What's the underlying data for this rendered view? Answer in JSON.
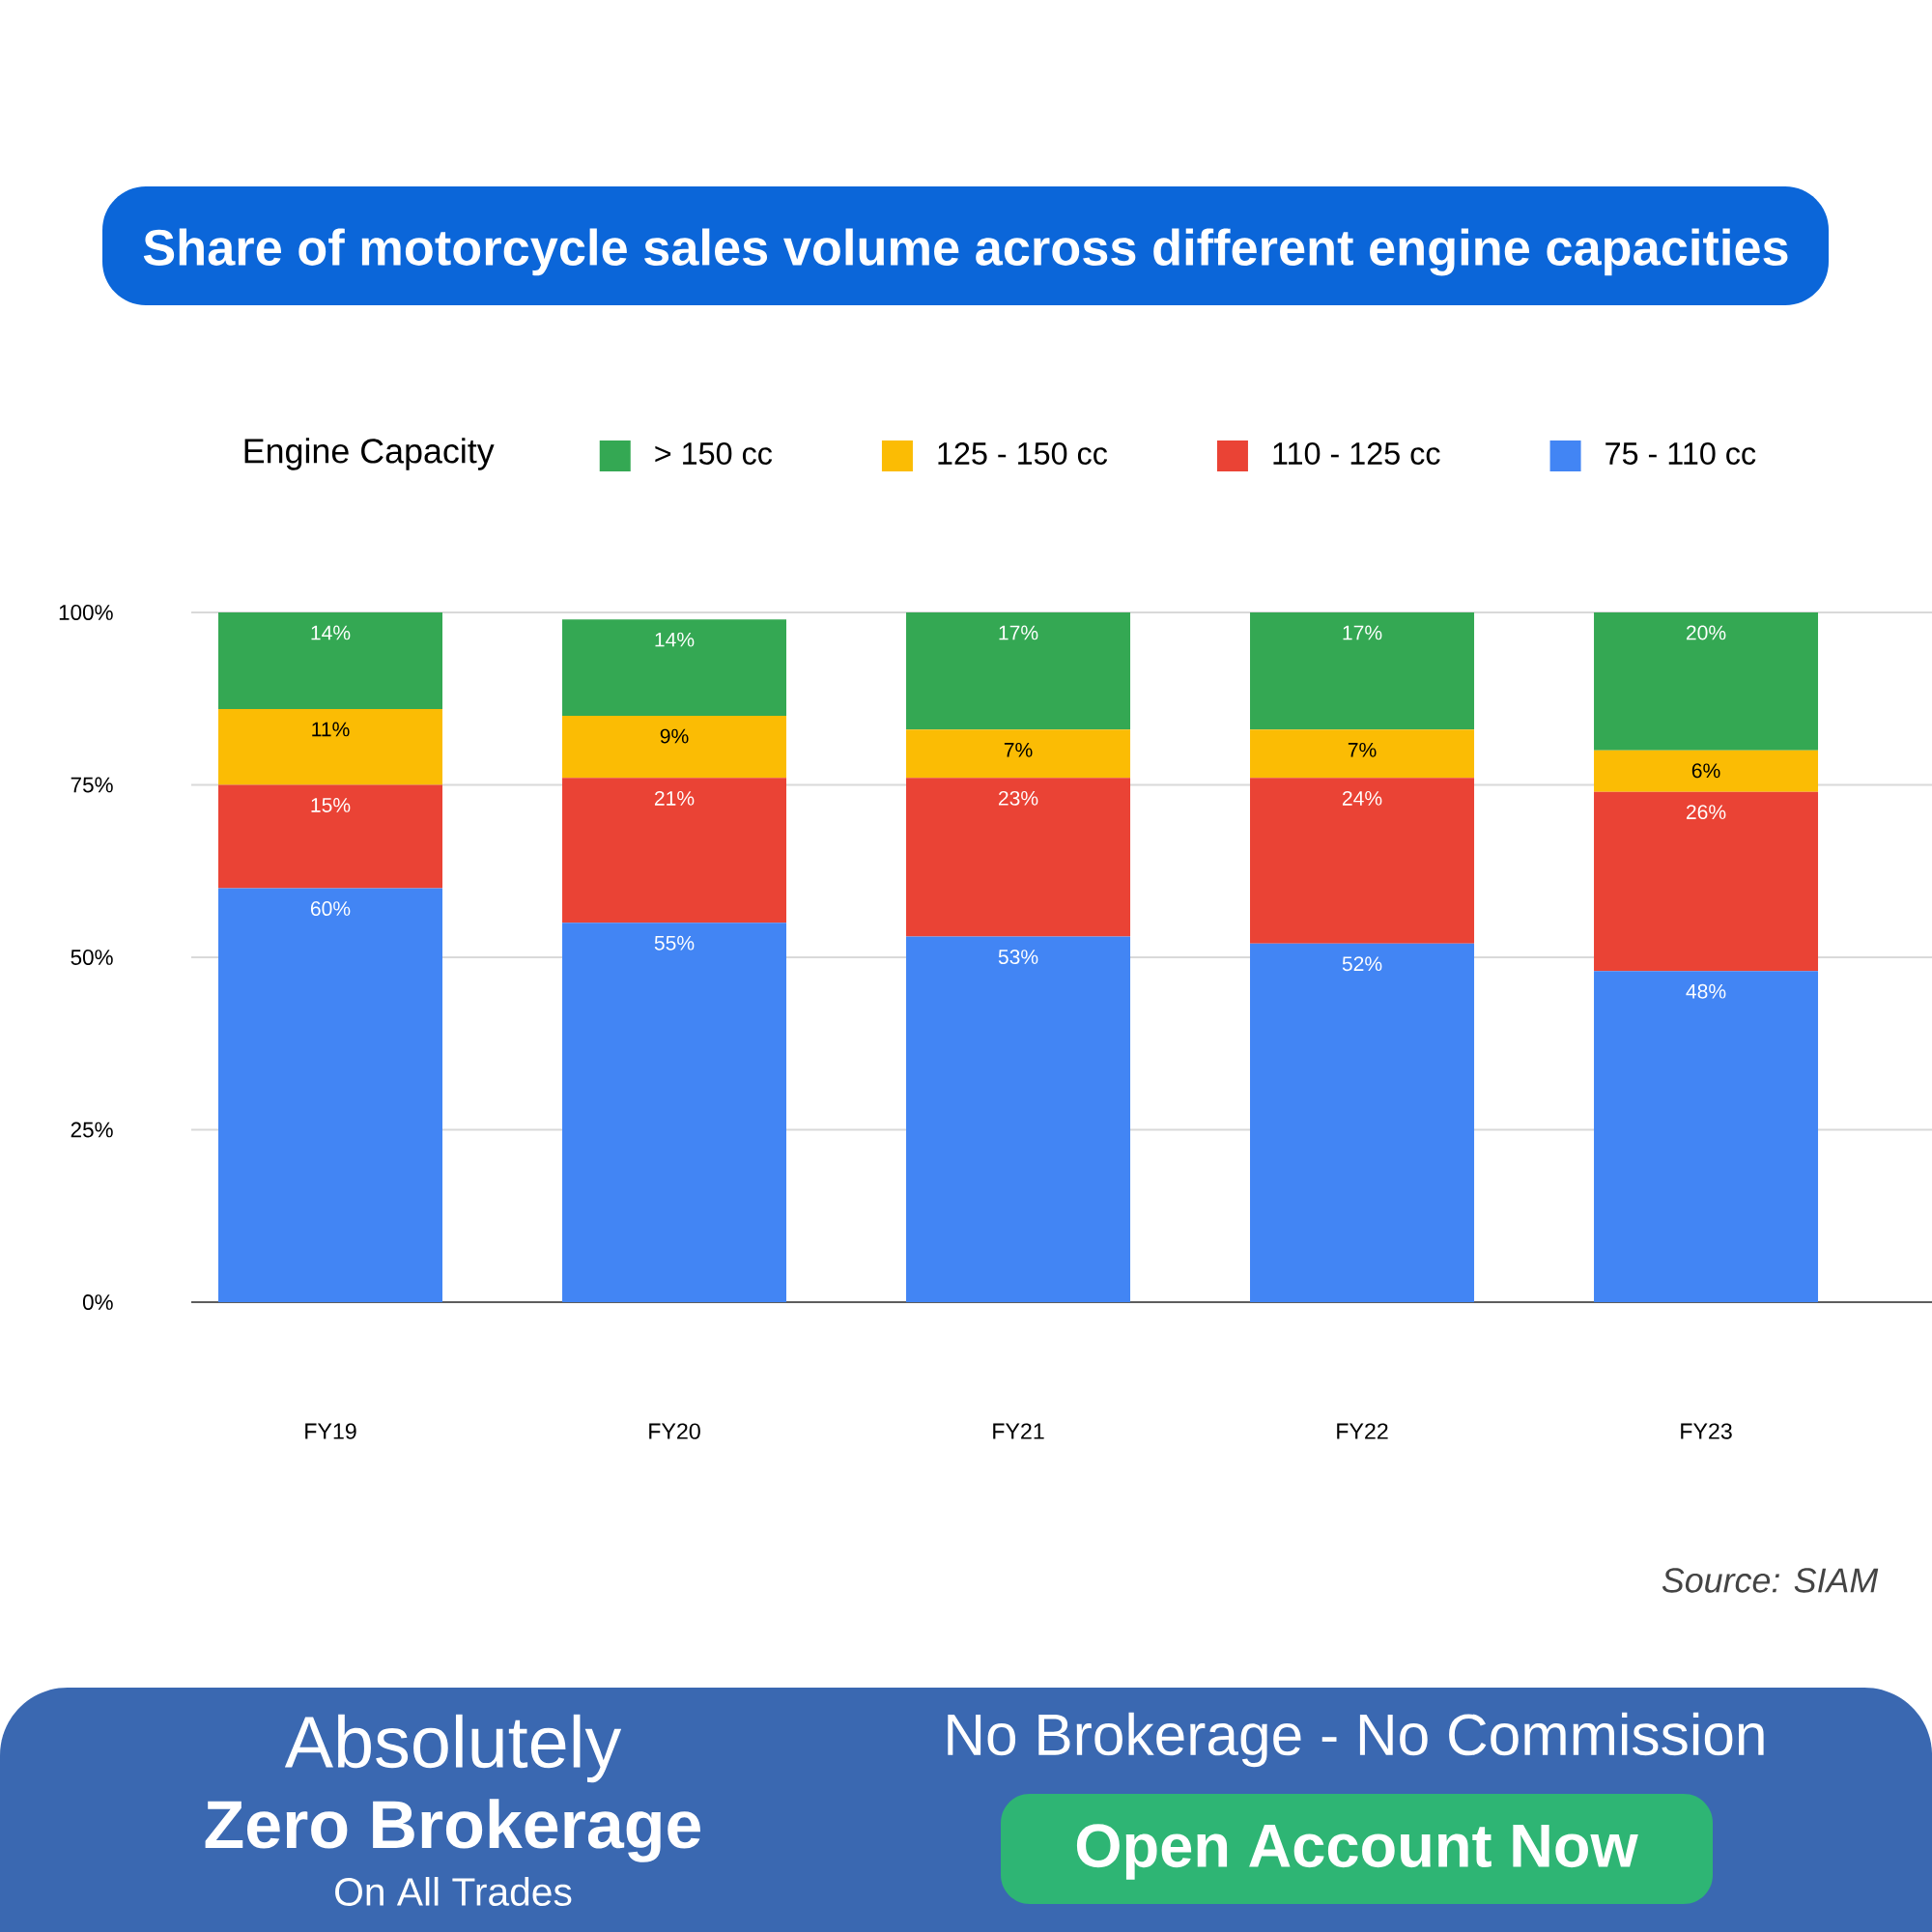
{
  "chart_data": {
    "type": "bar",
    "title": "Share of motorcycle sales volume across different engine capacities",
    "legend_title": "Engine Capacity",
    "categories": [
      "FY19",
      "FY20",
      "FY21",
      "FY22",
      "FY23"
    ],
    "series": [
      {
        "name": "75 - 110 cc",
        "color": "#4285f4",
        "values": [
          60,
          55,
          53,
          52,
          48
        ],
        "value_labels": [
          "60%",
          "55%",
          "53%",
          "52%",
          "48%"
        ]
      },
      {
        "name": "110 - 125 cc",
        "color": "#ea4335",
        "values": [
          15,
          21,
          23,
          24,
          26
        ],
        "value_labels": [
          "15%",
          "21%",
          "23%",
          "24%",
          "26%"
        ]
      },
      {
        "name": "125 - 150 cc",
        "color": "#fbbc04",
        "values": [
          11,
          9,
          7,
          7,
          6
        ],
        "value_labels": [
          "11%",
          "9%",
          "7%",
          "7%",
          "6%"
        ]
      },
      {
        "name": "> 150 cc",
        "color": "#34a853",
        "values": [
          14,
          14,
          17,
          17,
          20
        ],
        "value_labels": [
          "14%",
          "14%",
          "17%",
          "17%",
          "20%"
        ]
      }
    ],
    "stacked": true,
    "ylim": [
      0,
      100
    ],
    "yticks": [
      {
        "value": 0,
        "label": "0%"
      },
      {
        "value": 25,
        "label": "25%"
      },
      {
        "value": 50,
        "label": "50%"
      },
      {
        "value": 75,
        "label": "75%"
      },
      {
        "value": 100,
        "label": "100%"
      }
    ],
    "grid": "y",
    "legend": "top",
    "annotations": [
      "Source: SIAM",
      "Absolutely",
      "Zero Brokerage",
      "On All Trades",
      "No Brokerage - No Commission",
      "Open Account Now"
    ]
  }
}
